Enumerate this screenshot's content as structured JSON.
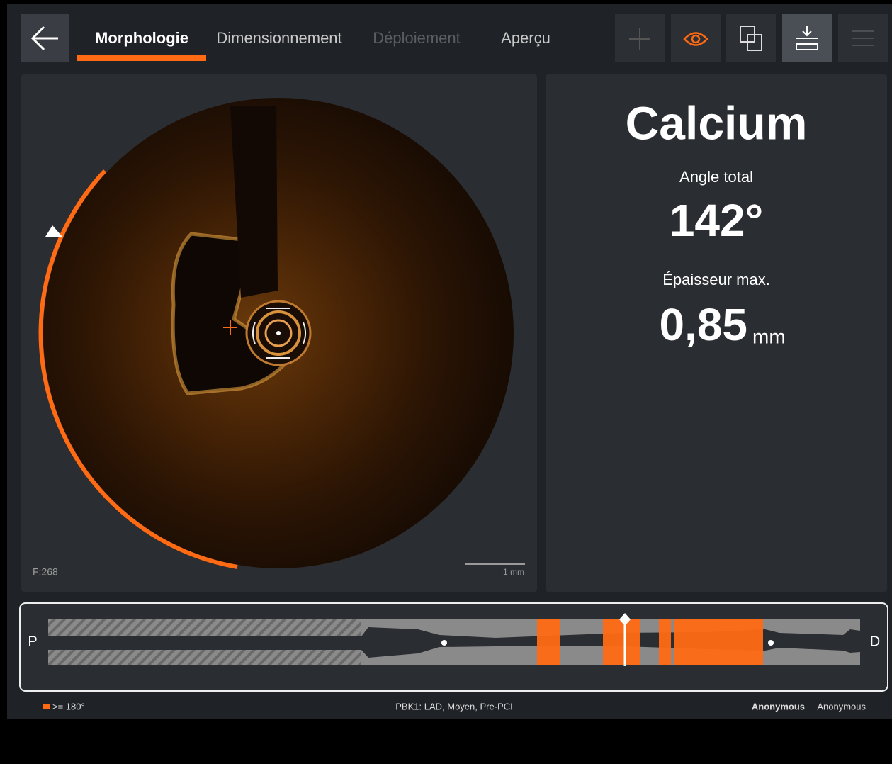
{
  "tabs": [
    "Morphologie",
    "Dimensionnement",
    "Déploiement",
    "Aperçu"
  ],
  "image": {
    "frame": "F:268",
    "scale": "1 mm"
  },
  "result": {
    "title": "Calcium",
    "angle_label": "Angle total",
    "angle_value": "142°",
    "thickness_label": "Épaisseur max.",
    "thickness_value": "0,85",
    "thickness_unit": "mm"
  },
  "pullback": {
    "start": "P",
    "end": "D"
  },
  "footer": {
    "legend": ">= 180°",
    "info": "PBK1:  LAD,  Moyen,  Pre-PCI",
    "patient_name": "Anonymous",
    "patient_id": "Anonymous"
  }
}
